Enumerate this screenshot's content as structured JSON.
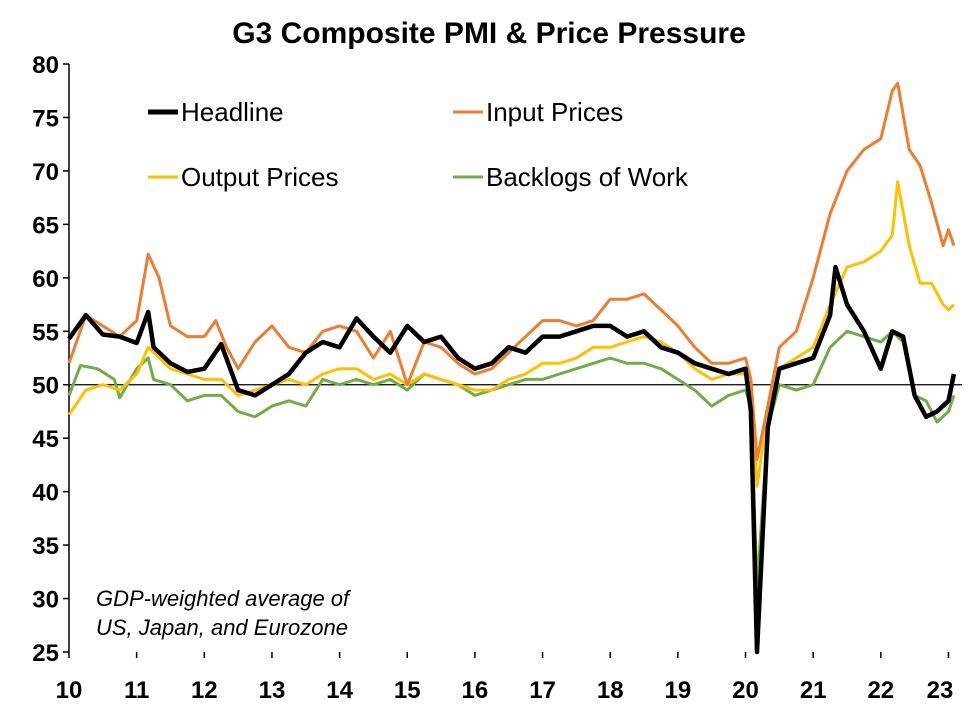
{
  "chart_data": {
    "type": "line",
    "title": "G3 Composite PMI & Price Pressure",
    "xlabel": "",
    "ylabel": "",
    "ylim": [
      25,
      80
    ],
    "yticks": [
      25,
      30,
      35,
      40,
      45,
      50,
      55,
      60,
      65,
      70,
      75,
      80
    ],
    "x_tick_labels": [
      "10",
      "11",
      "12",
      "13",
      "14",
      "15",
      "16",
      "17",
      "18",
      "19",
      "20",
      "21",
      "22",
      "23"
    ],
    "reference_line": 50,
    "grid": false,
    "legend_position": "top-left",
    "annotation": [
      "GDP-weighted average of",
      "US, Japan, and Eurozone"
    ],
    "series": [
      {
        "name": "Headline",
        "color": "#000000",
        "points": [
          [
            2010.0,
            54.3
          ],
          [
            2010.25,
            56.5
          ],
          [
            2010.5,
            54.7
          ],
          [
            2010.75,
            54.5
          ],
          [
            2011.0,
            53.9
          ],
          [
            2011.17,
            56.8
          ],
          [
            2011.25,
            53.5
          ],
          [
            2011.5,
            52.0
          ],
          [
            2011.75,
            51.2
          ],
          [
            2012.0,
            51.5
          ],
          [
            2012.25,
            53.8
          ],
          [
            2012.5,
            49.5
          ],
          [
            2012.75,
            49.0
          ],
          [
            2013.0,
            50.0
          ],
          [
            2013.25,
            51.0
          ],
          [
            2013.5,
            53.0
          ],
          [
            2013.75,
            54.0
          ],
          [
            2014.0,
            53.5
          ],
          [
            2014.25,
            56.2
          ],
          [
            2014.5,
            54.5
          ],
          [
            2014.75,
            53.0
          ],
          [
            2015.0,
            55.5
          ],
          [
            2015.25,
            54.0
          ],
          [
            2015.5,
            54.5
          ],
          [
            2015.75,
            52.5
          ],
          [
            2016.0,
            51.5
          ],
          [
            2016.25,
            52.0
          ],
          [
            2016.5,
            53.5
          ],
          [
            2016.75,
            53.0
          ],
          [
            2017.0,
            54.5
          ],
          [
            2017.25,
            54.5
          ],
          [
            2017.5,
            55.0
          ],
          [
            2017.75,
            55.5
          ],
          [
            2018.0,
            55.5
          ],
          [
            2018.25,
            54.5
          ],
          [
            2018.5,
            55.0
          ],
          [
            2018.75,
            53.5
          ],
          [
            2019.0,
            53.0
          ],
          [
            2019.25,
            52.0
          ],
          [
            2019.5,
            51.5
          ],
          [
            2019.75,
            51.0
          ],
          [
            2020.0,
            51.5
          ],
          [
            2020.08,
            47.5
          ],
          [
            2020.17,
            25.0
          ],
          [
            2020.33,
            46.0
          ],
          [
            2020.5,
            51.5
          ],
          [
            2020.75,
            52.0
          ],
          [
            2021.0,
            52.5
          ],
          [
            2021.25,
            56.5
          ],
          [
            2021.33,
            61.0
          ],
          [
            2021.5,
            57.5
          ],
          [
            2021.75,
            55.0
          ],
          [
            2022.0,
            51.5
          ],
          [
            2022.17,
            55.0
          ],
          [
            2022.33,
            54.5
          ],
          [
            2022.5,
            49.0
          ],
          [
            2022.67,
            47.0
          ],
          [
            2022.83,
            47.5
          ],
          [
            2023.0,
            48.5
          ],
          [
            2023.08,
            51.0
          ]
        ]
      },
      {
        "name": "Input Prices",
        "color": "#ED7D31",
        "points": [
          [
            2010.0,
            52.0
          ],
          [
            2010.25,
            56.5
          ],
          [
            2010.5,
            55.5
          ],
          [
            2010.75,
            54.5
          ],
          [
            2011.0,
            56.0
          ],
          [
            2011.17,
            62.2
          ],
          [
            2011.33,
            60.0
          ],
          [
            2011.5,
            55.5
          ],
          [
            2011.75,
            54.5
          ],
          [
            2012.0,
            54.5
          ],
          [
            2012.17,
            56.0
          ],
          [
            2012.33,
            53.5
          ],
          [
            2012.5,
            51.5
          ],
          [
            2012.75,
            54.0
          ],
          [
            2013.0,
            55.5
          ],
          [
            2013.25,
            53.5
          ],
          [
            2013.5,
            53.0
          ],
          [
            2013.75,
            55.0
          ],
          [
            2014.0,
            55.5
          ],
          [
            2014.25,
            55.0
          ],
          [
            2014.5,
            52.5
          ],
          [
            2014.75,
            55.0
          ],
          [
            2015.0,
            50.0
          ],
          [
            2015.25,
            54.0
          ],
          [
            2015.5,
            53.5
          ],
          [
            2015.75,
            52.0
          ],
          [
            2016.0,
            51.0
          ],
          [
            2016.25,
            51.5
          ],
          [
            2016.5,
            53.0
          ],
          [
            2016.75,
            54.5
          ],
          [
            2017.0,
            56.0
          ],
          [
            2017.25,
            56.0
          ],
          [
            2017.5,
            55.5
          ],
          [
            2017.75,
            56.0
          ],
          [
            2018.0,
            58.0
          ],
          [
            2018.25,
            58.0
          ],
          [
            2018.5,
            58.5
          ],
          [
            2018.75,
            57.0
          ],
          [
            2019.0,
            55.5
          ],
          [
            2019.25,
            53.5
          ],
          [
            2019.5,
            52.0
          ],
          [
            2019.75,
            52.0
          ],
          [
            2020.0,
            52.5
          ],
          [
            2020.08,
            50.5
          ],
          [
            2020.17,
            43.0
          ],
          [
            2020.33,
            48.0
          ],
          [
            2020.5,
            53.5
          ],
          [
            2020.75,
            55.0
          ],
          [
            2021.0,
            60.0
          ],
          [
            2021.25,
            66.0
          ],
          [
            2021.5,
            70.0
          ],
          [
            2021.75,
            72.0
          ],
          [
            2022.0,
            73.0
          ],
          [
            2022.17,
            77.5
          ],
          [
            2022.25,
            78.2
          ],
          [
            2022.42,
            72.0
          ],
          [
            2022.58,
            70.5
          ],
          [
            2022.75,
            67.0
          ],
          [
            2022.92,
            63.0
          ],
          [
            2023.0,
            64.5
          ],
          [
            2023.08,
            63.0
          ]
        ]
      },
      {
        "name": "Output Prices",
        "color": "#FFC000",
        "points": [
          [
            2010.0,
            47.2
          ],
          [
            2010.25,
            49.5
          ],
          [
            2010.5,
            50.0
          ],
          [
            2010.75,
            49.5
          ],
          [
            2011.0,
            51.0
          ],
          [
            2011.17,
            53.5
          ],
          [
            2011.25,
            53.0
          ],
          [
            2011.5,
            51.5
          ],
          [
            2011.75,
            51.0
          ],
          [
            2012.0,
            50.5
          ],
          [
            2012.25,
            50.5
          ],
          [
            2012.5,
            49.0
          ],
          [
            2012.75,
            49.5
          ],
          [
            2013.0,
            50.0
          ],
          [
            2013.25,
            50.5
          ],
          [
            2013.5,
            50.0
          ],
          [
            2013.75,
            51.0
          ],
          [
            2014.0,
            51.5
          ],
          [
            2014.25,
            51.5
          ],
          [
            2014.5,
            50.5
          ],
          [
            2014.75,
            51.0
          ],
          [
            2015.0,
            50.0
          ],
          [
            2015.25,
            51.0
          ],
          [
            2015.5,
            50.5
          ],
          [
            2015.75,
            50.0
          ],
          [
            2016.0,
            49.5
          ],
          [
            2016.25,
            49.5
          ],
          [
            2016.5,
            50.5
          ],
          [
            2016.75,
            51.0
          ],
          [
            2017.0,
            52.0
          ],
          [
            2017.25,
            52.0
          ],
          [
            2017.5,
            52.5
          ],
          [
            2017.75,
            53.5
          ],
          [
            2018.0,
            53.5
          ],
          [
            2018.25,
            54.0
          ],
          [
            2018.5,
            54.5
          ],
          [
            2018.75,
            54.0
          ],
          [
            2019.0,
            53.0
          ],
          [
            2019.25,
            51.5
          ],
          [
            2019.5,
            50.5
          ],
          [
            2019.75,
            51.0
          ],
          [
            2020.0,
            51.0
          ],
          [
            2020.08,
            49.5
          ],
          [
            2020.17,
            40.5
          ],
          [
            2020.33,
            47.5
          ],
          [
            2020.5,
            51.5
          ],
          [
            2020.75,
            52.5
          ],
          [
            2021.0,
            53.5
          ],
          [
            2021.25,
            57.5
          ],
          [
            2021.5,
            61.0
          ],
          [
            2021.75,
            61.5
          ],
          [
            2022.0,
            62.5
          ],
          [
            2022.17,
            64.0
          ],
          [
            2022.25,
            69.0
          ],
          [
            2022.42,
            63.0
          ],
          [
            2022.58,
            59.5
          ],
          [
            2022.75,
            59.5
          ],
          [
            2022.92,
            57.5
          ],
          [
            2023.0,
            57.0
          ],
          [
            2023.08,
            57.5
          ]
        ]
      },
      {
        "name": "Backlogs of Work",
        "color": "#70AD47",
        "points": [
          [
            2010.0,
            49.0
          ],
          [
            2010.17,
            51.8
          ],
          [
            2010.42,
            51.5
          ],
          [
            2010.67,
            50.5
          ],
          [
            2010.75,
            48.8
          ],
          [
            2011.0,
            51.5
          ],
          [
            2011.17,
            52.5
          ],
          [
            2011.25,
            50.5
          ],
          [
            2011.5,
            50.0
          ],
          [
            2011.75,
            48.5
          ],
          [
            2012.0,
            49.0
          ],
          [
            2012.25,
            49.0
          ],
          [
            2012.5,
            47.5
          ],
          [
            2012.75,
            47.0
          ],
          [
            2013.0,
            48.0
          ],
          [
            2013.25,
            48.5
          ],
          [
            2013.5,
            48.0
          ],
          [
            2013.75,
            50.5
          ],
          [
            2014.0,
            50.0
          ],
          [
            2014.25,
            50.5
          ],
          [
            2014.5,
            50.0
          ],
          [
            2014.75,
            50.5
          ],
          [
            2015.0,
            49.5
          ],
          [
            2015.25,
            51.0
          ],
          [
            2015.5,
            50.5
          ],
          [
            2015.75,
            50.0
          ],
          [
            2016.0,
            49.0
          ],
          [
            2016.25,
            49.5
          ],
          [
            2016.5,
            50.0
          ],
          [
            2016.75,
            50.5
          ],
          [
            2017.0,
            50.5
          ],
          [
            2017.25,
            51.0
          ],
          [
            2017.5,
            51.5
          ],
          [
            2017.75,
            52.0
          ],
          [
            2018.0,
            52.5
          ],
          [
            2018.25,
            52.0
          ],
          [
            2018.5,
            52.0
          ],
          [
            2018.75,
            51.5
          ],
          [
            2019.0,
            50.5
          ],
          [
            2019.25,
            49.5
          ],
          [
            2019.5,
            48.0
          ],
          [
            2019.75,
            49.0
          ],
          [
            2020.0,
            49.5
          ],
          [
            2020.08,
            48.0
          ],
          [
            2020.17,
            31.0
          ],
          [
            2020.33,
            46.0
          ],
          [
            2020.5,
            50.0
          ],
          [
            2020.75,
            49.5
          ],
          [
            2021.0,
            50.0
          ],
          [
            2021.25,
            53.5
          ],
          [
            2021.5,
            55.0
          ],
          [
            2021.75,
            54.5
          ],
          [
            2022.0,
            54.0
          ],
          [
            2022.17,
            55.0
          ],
          [
            2022.33,
            54.0
          ],
          [
            2022.5,
            49.0
          ],
          [
            2022.67,
            48.5
          ],
          [
            2022.83,
            46.5
          ],
          [
            2023.0,
            47.5
          ],
          [
            2023.08,
            49.0
          ]
        ]
      }
    ]
  }
}
